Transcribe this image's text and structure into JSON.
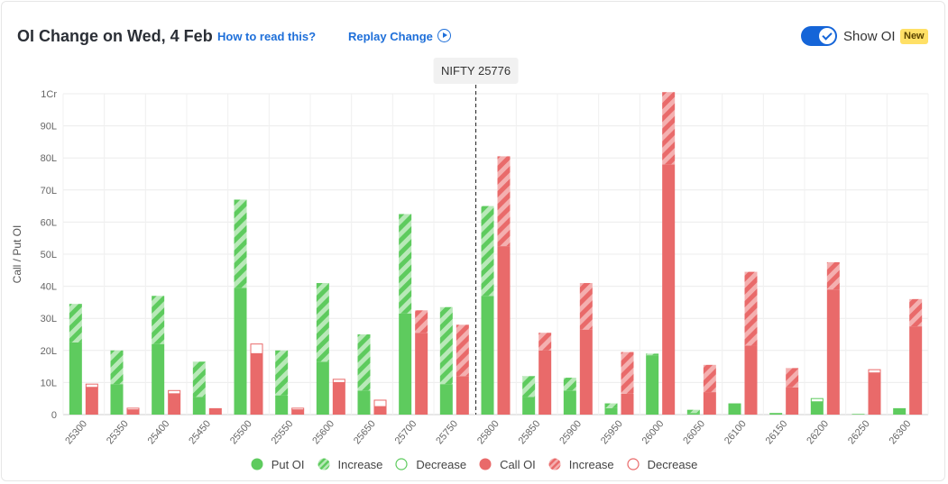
{
  "header": {
    "title": "OI Change on Wed, 4 Feb",
    "how_to_read": "How to read this?",
    "replay": "Replay Change",
    "toggle_label": "Show OI",
    "new_badge": "New"
  },
  "colors": {
    "put": "#5ecb5e",
    "put_increase_stripe": "#b9e9b9",
    "call": "#e96a6a",
    "call_increase_stripe": "#f4b0b0",
    "accent": "#1565d8"
  },
  "legend": [
    {
      "label": "Put OI",
      "kind": "put-solid"
    },
    {
      "label": "Increase",
      "kind": "put-increase"
    },
    {
      "label": "Decrease",
      "kind": "put-decrease"
    },
    {
      "label": "Call OI",
      "kind": "call-solid"
    },
    {
      "label": "Increase",
      "kind": "call-increase"
    },
    {
      "label": "Decrease",
      "kind": "call-decrease"
    }
  ],
  "chart_data": {
    "type": "bar",
    "spot_label": "NIFTY 25776",
    "spot_value": 25776,
    "categories": [
      "25300",
      "25350",
      "25400",
      "25450",
      "25500",
      "25550",
      "25600",
      "25650",
      "25700",
      "25750",
      "25800",
      "25850",
      "25900",
      "25950",
      "26000",
      "26050",
      "26100",
      "26150",
      "26200",
      "26250",
      "26300"
    ],
    "ylabel": "Call / Put OI",
    "yticks": [
      "0",
      "10L",
      "20L",
      "30L",
      "40L",
      "50L",
      "60L",
      "70L",
      "80L",
      "90L",
      "1Cr"
    ],
    "ylim": [
      0,
      100
    ],
    "unit": "Lakh",
    "grid": true,
    "series": [
      {
        "name": "Put OI",
        "base": [
          22.5,
          9.5,
          22,
          5.5,
          39.5,
          6,
          16.5,
          7.5,
          31.5,
          9.5,
          37,
          5.5,
          7.5,
          2,
          18.5,
          0.5,
          3.5,
          0.5,
          4,
          0.2,
          2
        ],
        "increase": [
          12,
          10.5,
          15,
          11,
          27.5,
          14,
          24.5,
          17.5,
          31,
          24,
          28,
          6.5,
          4,
          1.5,
          0.5,
          1,
          0,
          0,
          0,
          0,
          0
        ],
        "decrease": [
          0,
          0,
          0,
          0,
          0,
          0,
          0,
          0,
          0,
          0,
          0,
          0,
          0,
          0,
          0,
          0,
          0,
          0,
          1,
          0,
          0
        ]
      },
      {
        "name": "Call OI",
        "base": [
          8.5,
          1.5,
          6.5,
          2,
          19,
          1.5,
          10,
          2.5,
          25.5,
          12,
          52.5,
          20,
          26.5,
          6.5,
          78,
          7,
          21.5,
          8.5,
          39,
          13,
          27.5
        ],
        "increase": [
          0,
          0,
          0,
          0,
          0,
          0,
          0,
          0,
          7,
          16,
          28,
          5.5,
          14.5,
          13,
          22.5,
          8.5,
          23,
          6,
          8.5,
          0,
          8.5
        ],
        "decrease": [
          1,
          0.5,
          1,
          0,
          3,
          0.5,
          1,
          2,
          0,
          0,
          0,
          0,
          0,
          0,
          0,
          0,
          0,
          0,
          0,
          1,
          0
        ]
      }
    ]
  }
}
